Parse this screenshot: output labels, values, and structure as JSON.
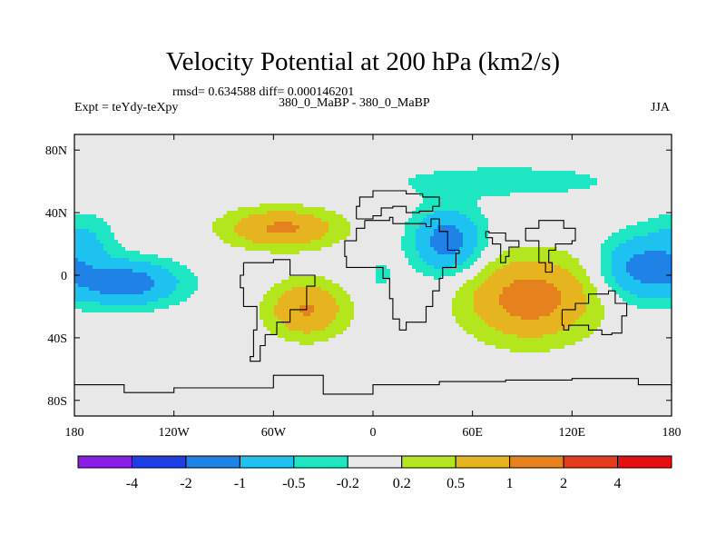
{
  "chart_data": {
    "type": "heatmap",
    "title": "Velocity Potential at 200 hPa (km2/s)",
    "stats": "rmsd= 0.634588 diff= 0.000146201",
    "left_label": "Expt = teYdy-teXpy",
    "center_label": "380_0_MaBP - 380_0_MaBP",
    "right_label": "JJA",
    "x_ticks": [
      "180",
      "120W",
      "60W",
      "0",
      "60E",
      "120E",
      "180"
    ],
    "x_tick_values": [
      -180,
      -120,
      -60,
      0,
      60,
      120,
      180
    ],
    "y_ticks": [
      "80N",
      "40N",
      "0",
      "40S",
      "80S"
    ],
    "y_tick_values": [
      80,
      40,
      0,
      -40,
      -80
    ],
    "xlim": [
      -180,
      180
    ],
    "ylim": [
      -90,
      90
    ],
    "colorbar_labels": [
      "-4",
      "-2",
      "-1",
      "-0.5",
      "-0.2",
      "0.2",
      "0.5",
      "1",
      "2",
      "4"
    ],
    "colorbar_colors": [
      "#8a1ee6",
      "#1e3ee6",
      "#1e82e6",
      "#1ec2f0",
      "#1ee6c2",
      "#e8e8e8",
      "#b4e61e",
      "#e6b41e",
      "#e6821e",
      "#e63c1e",
      "#e60f0f"
    ],
    "field": {
      "background_value": 0,
      "features": [
        {
          "name": "south-pacific-low",
          "lon": -150,
          "lat": -5,
          "sx": 32,
          "sy": 14,
          "value": -1.4
        },
        {
          "name": "south-pacific-ext",
          "lon": -175,
          "lat": 20,
          "sx": 18,
          "sy": 18,
          "value": -0.6
        },
        {
          "name": "north-atlantic-high",
          "lon": -55,
          "lat": 30,
          "sx": 32,
          "sy": 12,
          "value": 1.1
        },
        {
          "name": "south-atlantic-high",
          "lon": -40,
          "lat": -22,
          "sx": 22,
          "sy": 17,
          "value": 1.05
        },
        {
          "name": "indian-ocean-low",
          "lon": 45,
          "lat": 22,
          "sx": 20,
          "sy": 20,
          "value": -1.3
        },
        {
          "name": "asia-high",
          "lon": 95,
          "lat": -15,
          "sx": 36,
          "sy": 25,
          "value": 1.3
        },
        {
          "name": "north-band",
          "lon": 80,
          "lat": 60,
          "sx": 75,
          "sy": 11,
          "value": -0.35
        },
        {
          "name": "west-pacific-low",
          "lon": 160,
          "lat": 5,
          "sx": 22,
          "sy": 20,
          "value": -1.1
        },
        {
          "name": "gap-low",
          "lon": 5,
          "lat": 0,
          "sx": 9,
          "sy": 14,
          "value": -0.25
        }
      ]
    },
    "continent_outlines": "approximate"
  }
}
